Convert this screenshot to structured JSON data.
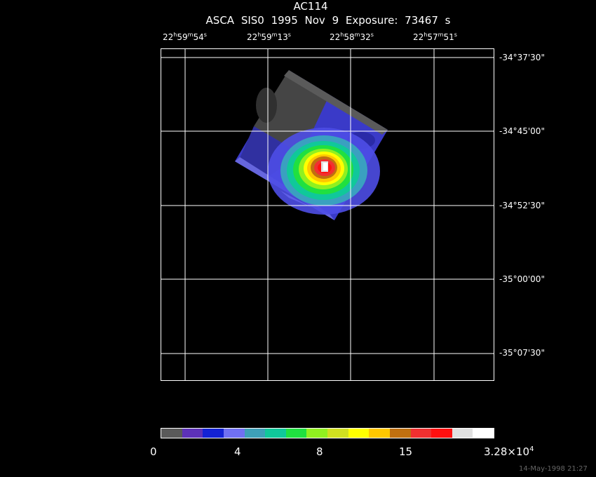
{
  "header": {
    "object": "AC114",
    "subtitle": "ASCA SIS0   1995 Nov  9    Exposure: 73467 s"
  },
  "axes": {
    "ra_labels": [
      {
        "h": "22",
        "m": "59",
        "s": "54"
      },
      {
        "h": "22",
        "m": "59",
        "s": "13"
      },
      {
        "h": "22",
        "m": "58",
        "s": "32"
      },
      {
        "h": "22",
        "m": "57",
        "s": "51"
      }
    ],
    "dec_labels": [
      "-34°37'30\"",
      "-34°45'00\"",
      "-34°52'30\"",
      "-35°00'00\"",
      "-35°07'30\""
    ]
  },
  "colorbar": {
    "colors": [
      "#5a5a5a",
      "#5d31b8",
      "#1422d4",
      "#7070f2",
      "#3ea0b8",
      "#10c89a",
      "#20e040",
      "#90f020",
      "#d0e020",
      "#ffff00",
      "#ffc800",
      "#c07010",
      "#f03030",
      "#ff1010",
      "#e0e0e0",
      "#ffffff"
    ],
    "tick_labels": [
      "0",
      "4",
      "8",
      "15"
    ],
    "max_label": "3.28×10",
    "max_exponent": "4"
  },
  "footer": {
    "timestamp": "14-May-1998 21:27"
  }
}
